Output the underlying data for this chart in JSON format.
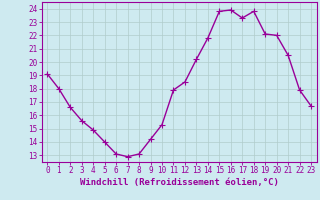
{
  "x": [
    0,
    1,
    2,
    3,
    4,
    5,
    6,
    7,
    8,
    9,
    10,
    11,
    12,
    13,
    14,
    15,
    16,
    17,
    18,
    19,
    20,
    21,
    22,
    23
  ],
  "y": [
    19.1,
    18.0,
    16.6,
    15.6,
    14.9,
    14.0,
    13.1,
    12.9,
    13.1,
    14.2,
    15.3,
    17.9,
    18.5,
    20.2,
    21.8,
    23.8,
    23.9,
    23.3,
    23.8,
    22.1,
    22.0,
    20.5,
    17.9,
    16.7
  ],
  "line_color": "#990099",
  "marker": "D",
  "marker_size": 2.0,
  "linewidth": 1.0,
  "xlabel": "Windchill (Refroidissement éolien,°C)",
  "xlabel_fontsize": 6.5,
  "bg_color": "#ceeaf0",
  "grid_color": "#b0cccc",
  "tick_color": "#990099",
  "spine_color": "#990099",
  "ylim": [
    12.5,
    24.5
  ],
  "xlim": [
    -0.5,
    23.5
  ],
  "yticks": [
    13,
    14,
    15,
    16,
    17,
    18,
    19,
    20,
    21,
    22,
    23,
    24
  ],
  "xticks": [
    0,
    1,
    2,
    3,
    4,
    5,
    6,
    7,
    8,
    9,
    10,
    11,
    12,
    13,
    14,
    15,
    16,
    17,
    18,
    19,
    20,
    21,
    22,
    23
  ],
  "tick_fontsize": 5.5,
  "ylabel_fontsize": 6
}
